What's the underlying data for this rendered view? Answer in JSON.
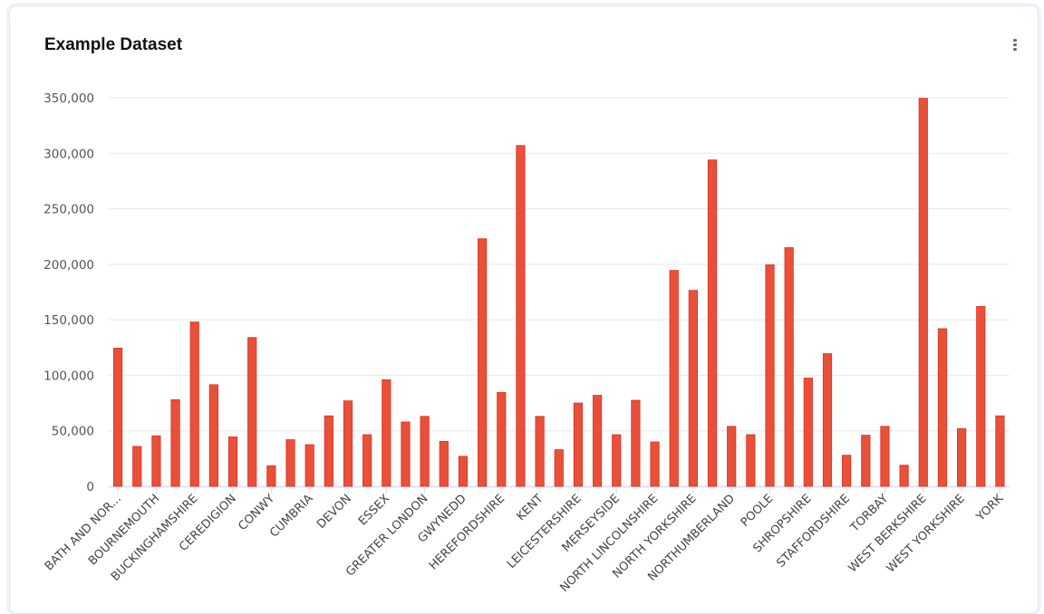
{
  "header": {
    "title": "Example Dataset",
    "menu_icon": "more-vertical-icon"
  },
  "chart_data": {
    "type": "bar",
    "title": "Example Dataset",
    "xlabel": "",
    "ylabel": "",
    "ylim": [
      0,
      350000
    ],
    "yticks": [
      0,
      50000,
      100000,
      150000,
      200000,
      250000,
      300000,
      350000
    ],
    "ytick_labels": [
      "0",
      "50,000",
      "100,000",
      "150,000",
      "200,000",
      "250,000",
      "300,000",
      "350,000"
    ],
    "grid": true,
    "bar_color": "#e8503a",
    "bar_border": "#e0301e",
    "categories": [
      "BATH AND NOR...",
      "",
      "BOURNEMOUTH",
      "",
      "BUCKINGHAMSHIRE",
      "",
      "CEREDIGION",
      "",
      "CONWY",
      "",
      "CUMBRIA",
      "",
      "DEVON",
      "",
      "ESSEX",
      "",
      "GREATER LONDON",
      "",
      "GWYNEDD",
      "",
      "HEREFORDSHIRE",
      "",
      "KENT",
      "",
      "LEICESTERSHIRE",
      "",
      "MERSEYSIDE",
      "",
      "NORTH LINCOLNSHIRE",
      "",
      "NORTH YORKSHIRE",
      "",
      "NORTHUMBERLAND",
      "",
      "POOLE",
      "",
      "SHROPSHIRE",
      "",
      "STAFFORDSHIRE",
      "",
      "TORBAY",
      "",
      "WEST BERKSHIRE",
      "",
      "WEST YORKSHIRE",
      "",
      "YORK"
    ],
    "values": [
      124500,
      36000,
      45500,
      78000,
      148000,
      91500,
      44500,
      134000,
      18500,
      42000,
      37500,
      63500,
      77000,
      46500,
      96000,
      58000,
      63000,
      40500,
      27000,
      223000,
      84500,
      307000,
      63000,
      33000,
      75000,
      82000,
      46500,
      77500,
      40000,
      194500,
      176500,
      294000,
      54000,
      46500,
      199500,
      215000,
      97500,
      119500,
      28000,
      46000,
      54000,
      19000,
      349500,
      142000,
      52000,
      162000,
      63500
    ]
  }
}
